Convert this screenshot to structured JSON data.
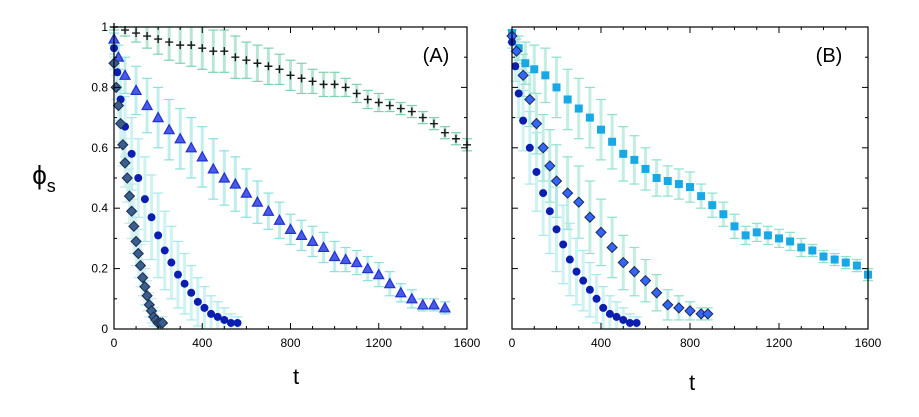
{
  "chart_data": [
    {
      "panel_label": "(A)",
      "type": "scatter",
      "xlabel": "t",
      "ylabel": "ϕs",
      "xlim": [
        0,
        1600
      ],
      "ylim": [
        0,
        1
      ],
      "xticks": [
        "0",
        "400",
        "800",
        "1200",
        "1600"
      ],
      "yticks": [
        "0",
        "0.2",
        "0.4",
        "0.6",
        "0.8",
        "1"
      ],
      "series": [
        {
          "name": "plus",
          "marker": "plus",
          "color": "#1a1a1a",
          "errcolor": "#7fd1b0",
          "x": [
            0,
            50,
            100,
            150,
            200,
            250,
            300,
            350,
            400,
            450,
            500,
            550,
            600,
            650,
            700,
            750,
            800,
            850,
            900,
            950,
            1000,
            1050,
            1100,
            1150,
            1200,
            1250,
            1300,
            1350,
            1400,
            1450,
            1500,
            1550,
            1600
          ],
          "y": [
            1,
            0.99,
            0.98,
            0.97,
            0.96,
            0.95,
            0.94,
            0.94,
            0.93,
            0.92,
            0.92,
            0.9,
            0.89,
            0.88,
            0.87,
            0.86,
            0.84,
            0.83,
            0.82,
            0.81,
            0.81,
            0.8,
            0.78,
            0.76,
            0.75,
            0.74,
            0.73,
            0.72,
            0.7,
            0.68,
            0.65,
            0.63,
            0.61
          ],
          "err": [
            0.01,
            0.02,
            0.03,
            0.04,
            0.05,
            0.06,
            0.06,
            0.07,
            0.07,
            0.07,
            0.07,
            0.07,
            0.06,
            0.06,
            0.06,
            0.05,
            0.05,
            0.05,
            0.04,
            0.04,
            0.04,
            0.03,
            0.03,
            0.03,
            0.03,
            0.02,
            0.02,
            0.02,
            0.02,
            0.02,
            0.02,
            0.02,
            0.02
          ]
        },
        {
          "name": "triangle",
          "marker": "triangle",
          "color": "#2233cc",
          "errcolor": "#8ce0dc",
          "x": [
            0,
            20,
            50,
            100,
            150,
            200,
            250,
            300,
            350,
            400,
            450,
            500,
            550,
            600,
            650,
            700,
            750,
            800,
            850,
            900,
            950,
            1000,
            1050,
            1100,
            1150,
            1200,
            1250,
            1300,
            1350,
            1400,
            1450,
            1500
          ],
          "y": [
            0.96,
            0.9,
            0.84,
            0.79,
            0.74,
            0.7,
            0.66,
            0.63,
            0.6,
            0.57,
            0.53,
            0.5,
            0.48,
            0.45,
            0.42,
            0.39,
            0.36,
            0.33,
            0.31,
            0.29,
            0.27,
            0.24,
            0.23,
            0.22,
            0.2,
            0.18,
            0.15,
            0.12,
            0.1,
            0.08,
            0.08,
            0.07
          ],
          "err": [
            0.02,
            0.04,
            0.06,
            0.08,
            0.09,
            0.1,
            0.1,
            0.1,
            0.1,
            0.1,
            0.1,
            0.09,
            0.09,
            0.08,
            0.07,
            0.06,
            0.06,
            0.05,
            0.05,
            0.05,
            0.05,
            0.05,
            0.04,
            0.04,
            0.04,
            0.04,
            0.04,
            0.03,
            0.03,
            0.02,
            0.02,
            0.02
          ]
        },
        {
          "name": "circle",
          "marker": "circle",
          "color": "#0a1fb0",
          "errcolor": "#a8e8ea",
          "x": [
            0,
            15,
            30,
            50,
            80,
            110,
            140,
            170,
            200,
            230,
            260,
            290,
            320,
            350,
            380,
            410,
            440,
            470,
            500,
            530,
            560
          ],
          "y": [
            0.93,
            0.85,
            0.76,
            0.67,
            0.58,
            0.5,
            0.43,
            0.37,
            0.31,
            0.26,
            0.22,
            0.18,
            0.15,
            0.12,
            0.09,
            0.07,
            0.05,
            0.04,
            0.03,
            0.02,
            0.02
          ],
          "err": [
            0.02,
            0.05,
            0.08,
            0.1,
            0.12,
            0.13,
            0.14,
            0.14,
            0.14,
            0.13,
            0.12,
            0.11,
            0.1,
            0.09,
            0.08,
            0.07,
            0.06,
            0.05,
            0.04,
            0.03,
            0.02
          ]
        },
        {
          "name": "diamond",
          "marker": "diamond",
          "color": "#3a5f8e",
          "errcolor": "#bfeaea",
          "x": [
            0,
            10,
            20,
            30,
            40,
            50,
            60,
            70,
            80,
            90,
            100,
            110,
            120,
            130,
            140,
            150,
            160,
            170,
            180,
            190,
            200,
            210,
            220
          ],
          "y": [
            0.88,
            0.8,
            0.74,
            0.68,
            0.61,
            0.55,
            0.5,
            0.44,
            0.39,
            0.34,
            0.29,
            0.25,
            0.21,
            0.17,
            0.14,
            0.11,
            0.08,
            0.06,
            0.04,
            0.03,
            0.02,
            0.02,
            0.02
          ],
          "err": [
            0.02,
            0.04,
            0.05,
            0.06,
            0.07,
            0.08,
            0.08,
            0.09,
            0.09,
            0.09,
            0.08,
            0.08,
            0.07,
            0.06,
            0.06,
            0.05,
            0.04,
            0.04,
            0.03,
            0.03,
            0.02,
            0.02,
            0.02
          ]
        }
      ]
    },
    {
      "panel_label": "(B)",
      "type": "scatter",
      "xlabel": "t",
      "ylabel": "",
      "xlim": [
        0,
        1600
      ],
      "ylim": [
        0,
        1
      ],
      "xticks": [
        "0",
        "400",
        "800",
        "1200",
        "1600"
      ],
      "yticks": [],
      "series": [
        {
          "name": "square",
          "marker": "square",
          "color": "#18a8e6",
          "errcolor": "#8fe0cc",
          "x": [
            0,
            30,
            60,
            100,
            150,
            200,
            250,
            300,
            350,
            400,
            450,
            500,
            550,
            600,
            650,
            700,
            750,
            800,
            850,
            900,
            950,
            1000,
            1050,
            1100,
            1150,
            1200,
            1250,
            1300,
            1350,
            1400,
            1450,
            1500,
            1550,
            1600
          ],
          "y": [
            0.98,
            0.93,
            0.88,
            0.86,
            0.84,
            0.8,
            0.76,
            0.73,
            0.7,
            0.66,
            0.62,
            0.58,
            0.56,
            0.53,
            0.5,
            0.49,
            0.48,
            0.47,
            0.44,
            0.41,
            0.38,
            0.34,
            0.31,
            0.32,
            0.31,
            0.3,
            0.29,
            0.27,
            0.26,
            0.24,
            0.23,
            0.22,
            0.21,
            0.18
          ],
          "err": [
            0.01,
            0.04,
            0.07,
            0.08,
            0.09,
            0.1,
            0.1,
            0.1,
            0.1,
            0.1,
            0.09,
            0.09,
            0.08,
            0.07,
            0.06,
            0.05,
            0.05,
            0.05,
            0.04,
            0.04,
            0.04,
            0.04,
            0.03,
            0.03,
            0.03,
            0.03,
            0.03,
            0.03,
            0.02,
            0.02,
            0.02,
            0.02,
            0.02,
            0.02
          ]
        },
        {
          "name": "diamond",
          "marker": "diamond",
          "color": "#3366ff",
          "errcolor": "#8fe0cc",
          "x": [
            0,
            20,
            50,
            80,
            110,
            140,
            170,
            200,
            250,
            300,
            350,
            400,
            450,
            500,
            550,
            600,
            650,
            700,
            750,
            800,
            850,
            880
          ],
          "y": [
            0.97,
            0.92,
            0.84,
            0.76,
            0.68,
            0.6,
            0.54,
            0.49,
            0.45,
            0.42,
            0.37,
            0.32,
            0.27,
            0.22,
            0.19,
            0.16,
            0.12,
            0.08,
            0.07,
            0.06,
            0.05,
            0.05
          ],
          "err": [
            0.02,
            0.04,
            0.07,
            0.09,
            0.1,
            0.11,
            0.12,
            0.12,
            0.12,
            0.12,
            0.12,
            0.11,
            0.1,
            0.09,
            0.08,
            0.07,
            0.06,
            0.05,
            0.04,
            0.03,
            0.02,
            0.02
          ]
        },
        {
          "name": "circle",
          "marker": "circle",
          "color": "#0a1fb0",
          "errcolor": "#a8e8ea",
          "x": [
            0,
            15,
            30,
            50,
            80,
            110,
            140,
            170,
            200,
            230,
            260,
            290,
            320,
            350,
            380,
            410,
            440,
            470,
            500,
            530,
            560
          ],
          "y": [
            0.95,
            0.87,
            0.78,
            0.69,
            0.6,
            0.52,
            0.45,
            0.39,
            0.33,
            0.28,
            0.23,
            0.19,
            0.16,
            0.13,
            0.1,
            0.07,
            0.05,
            0.04,
            0.03,
            0.02,
            0.02
          ],
          "err": [
            0.02,
            0.05,
            0.08,
            0.1,
            0.12,
            0.13,
            0.14,
            0.14,
            0.14,
            0.13,
            0.12,
            0.11,
            0.1,
            0.09,
            0.08,
            0.07,
            0.06,
            0.05,
            0.04,
            0.03,
            0.02
          ]
        }
      ]
    }
  ]
}
